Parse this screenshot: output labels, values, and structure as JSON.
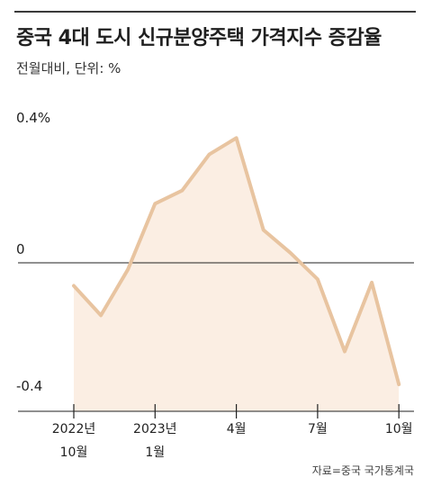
{
  "title": "중국 4대 도시 신규분양주택 가격지수 증감율",
  "subtitle": "전월대비, 단위: %",
  "source": "자료=중국 국가통계국",
  "colors": {
    "line": "#e8c4a0",
    "area": "#fbeee3",
    "axis": "#222222"
  },
  "chart_data": {
    "type": "area",
    "ylim": [
      -0.4,
      0.4
    ],
    "y_tick_labels": [
      {
        "value": 0.4,
        "label": "0.4%"
      },
      {
        "value": 0,
        "label": "0"
      },
      {
        "value": -0.4,
        "label": "-0.4"
      }
    ],
    "x_tick_labels": [
      {
        "index": 0,
        "lines": [
          "2022년",
          "10월"
        ]
      },
      {
        "index": 3,
        "lines": [
          "2023년",
          "1월"
        ]
      },
      {
        "index": 6,
        "lines": [
          "4월"
        ]
      },
      {
        "index": 9,
        "lines": [
          "7월"
        ]
      },
      {
        "index": 12,
        "lines": [
          "10월"
        ]
      }
    ],
    "categories": [
      "2022-10",
      "2022-11",
      "2022-12",
      "2023-01",
      "2023-02",
      "2023-03",
      "2023-04",
      "2023-05",
      "2023-06",
      "2023-07",
      "2023-08",
      "2023-09",
      "2023-10"
    ],
    "series": [
      {
        "values": [
          -0.07,
          -0.16,
          -0.02,
          0.18,
          0.22,
          0.33,
          0.38,
          0.1,
          0.03,
          -0.05,
          -0.27,
          -0.06,
          -0.37
        ]
      }
    ]
  }
}
